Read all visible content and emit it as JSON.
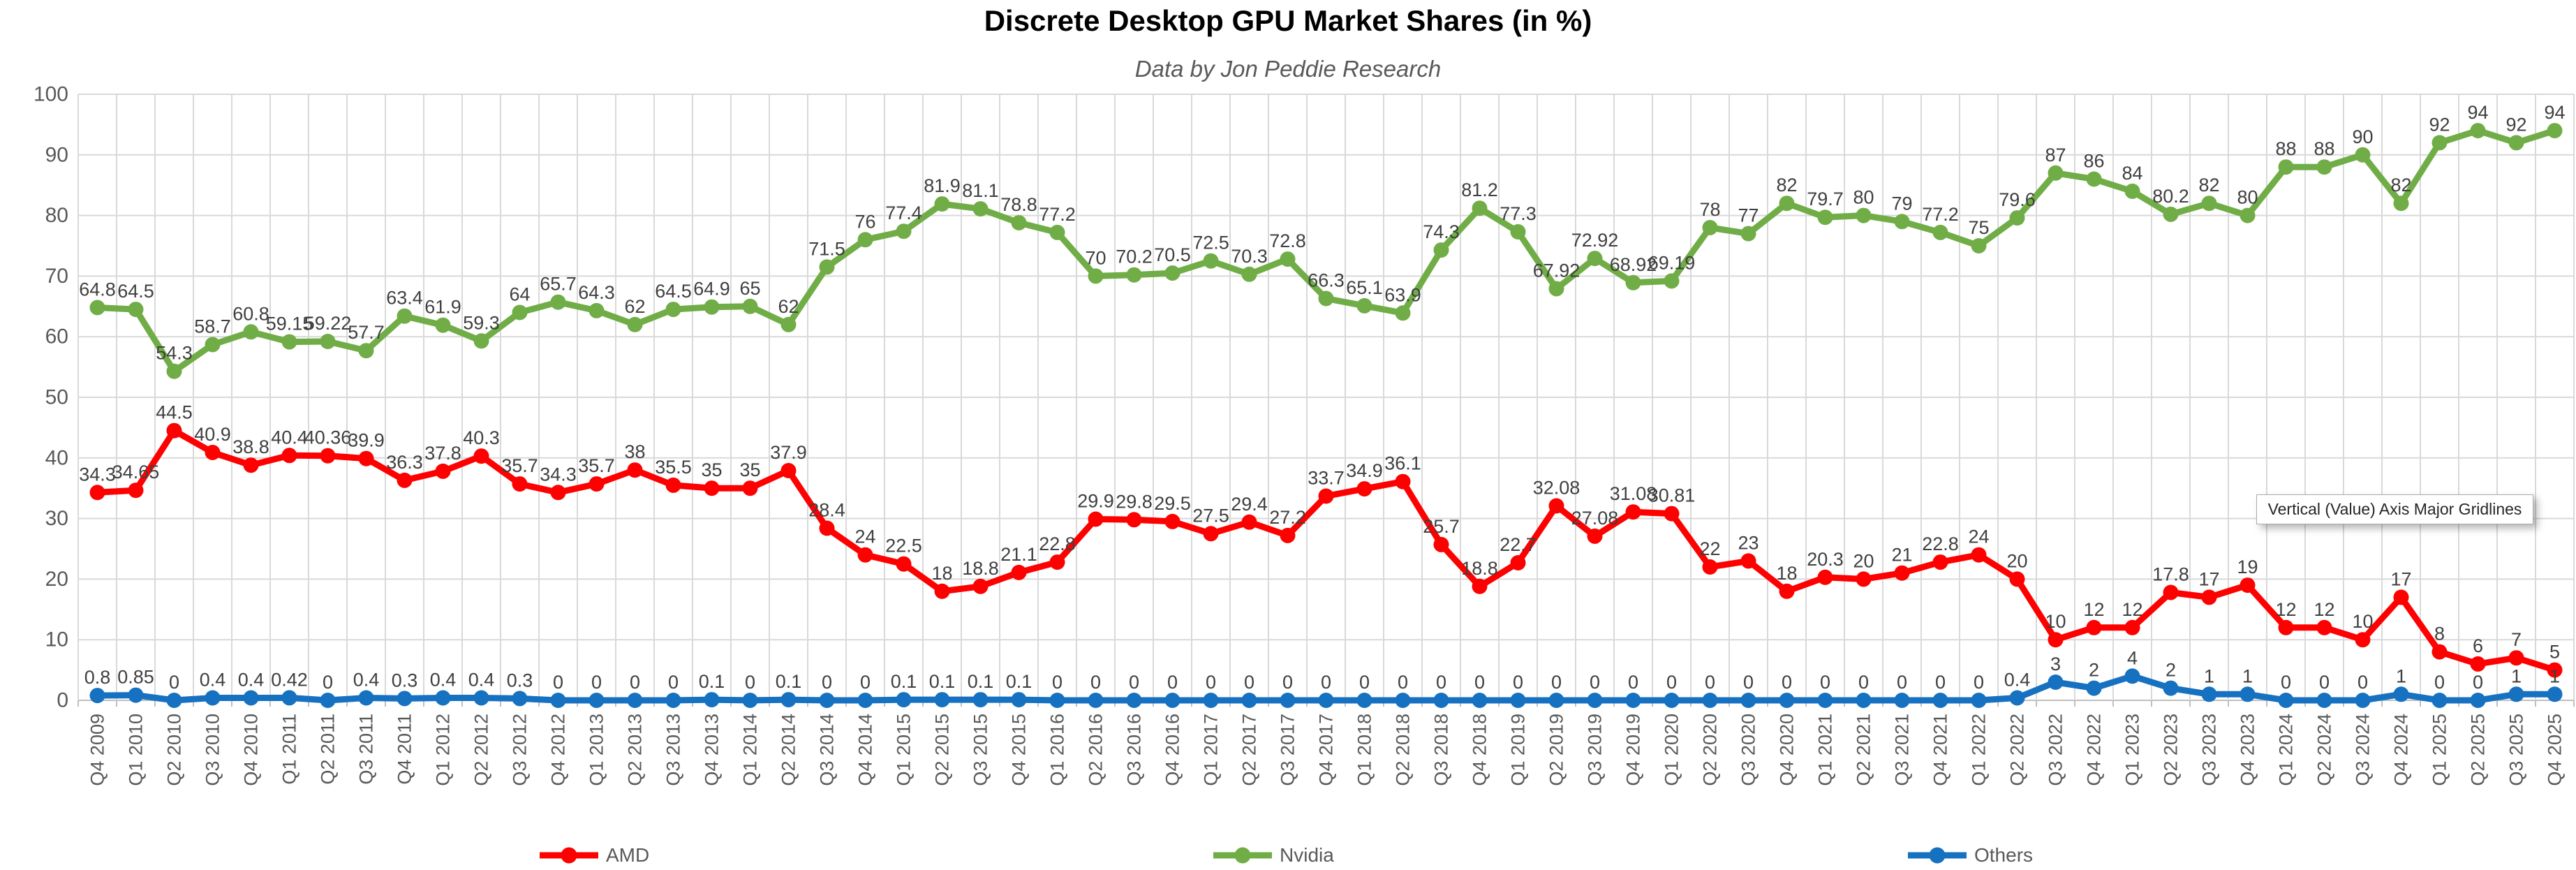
{
  "page": {
    "background": "#FFFFFF"
  },
  "colors": {
    "gridline": "#D9D9D9",
    "axis_line": "#BFBFBF",
    "axis_text": "#595959",
    "data_label": "#404040",
    "title": "#000000",
    "subtitle": "#595959",
    "amd": "#FF0000",
    "nvidia": "#70AD47",
    "others": "#1671C1"
  },
  "tooltip": {
    "text": "Vertical (Value) Axis Major Gridlines"
  },
  "chart_data": {
    "type": "line",
    "title": "Discrete Desktop GPU Market Shares (in %)",
    "subtitle": "Data by Jon Peddie Research",
    "legend_position": "bottom",
    "grid": true,
    "markers": true,
    "data_labels": true,
    "y_axis": {
      "min": 0,
      "max": 100,
      "step": 10,
      "ticks": [
        0,
        10,
        20,
        30,
        40,
        50,
        60,
        70,
        80,
        90,
        100
      ]
    },
    "x_axis": {
      "label_rotation": -90
    },
    "categories": [
      "Q4 2009",
      "Q1 2010",
      "Q2 2010",
      "Q3 2010",
      "Q4 2010",
      "Q1 2011",
      "Q2 2011",
      "Q3 2011",
      "Q4 2011",
      "Q1 2012",
      "Q2 2012",
      "Q3 2012",
      "Q4 2012",
      "Q1 2013",
      "Q2 2013",
      "Q3 2013",
      "Q4 2013",
      "Q1 2014",
      "Q2 2014",
      "Q3 2014",
      "Q4 2014",
      "Q1 2015",
      "Q2 2015",
      "Q3 2015",
      "Q4 2015",
      "Q1 2016",
      "Q2 2016",
      "Q3 2016",
      "Q4 2016",
      "Q1 2017",
      "Q2 2017",
      "Q3 2017",
      "Q4 2017",
      "Q1 2018",
      "Q2 2018",
      "Q3 2018",
      "Q4 2018",
      "Q1 2019",
      "Q2 2019",
      "Q3 2019",
      "Q4 2019",
      "Q1 2020",
      "Q2 2020",
      "Q3 2020",
      "Q4 2020",
      "Q1 2021",
      "Q2 2021",
      "Q3 2021",
      "Q4 2021",
      "Q1 2022",
      "Q2 2022",
      "Q3 2022",
      "Q4 2022",
      "Q1 2023",
      "Q2 2023",
      "Q3 2023",
      "Q4 2023",
      "Q1 2024",
      "Q2 2024",
      "Q3 2024",
      "Q4 2024",
      "Q1 2025",
      "Q2 2025",
      "Q3 2025",
      "Q4 2025"
    ],
    "series": [
      {
        "name": "AMD",
        "color": "#FF0000",
        "values": [
          34.3,
          34.65,
          44.5,
          40.9,
          38.8,
          40.4,
          40.36,
          39.9,
          36.3,
          37.8,
          40.3,
          35.7,
          34.3,
          35.7,
          38,
          35.5,
          35,
          35,
          37.9,
          28.4,
          24,
          22.5,
          18,
          18.8,
          21.1,
          22.8,
          29.9,
          29.8,
          29.5,
          27.5,
          29.4,
          27.2,
          33.7,
          34.9,
          36.1,
          25.7,
          18.8,
          22.7,
          32.08,
          27.08,
          31.08,
          30.81,
          22,
          23,
          18,
          20.3,
          20,
          21,
          22.8,
          24,
          20,
          10,
          12,
          12,
          17.8,
          17,
          19,
          12,
          12,
          10,
          17,
          8,
          6,
          7,
          5
        ]
      },
      {
        "name": "Nvidia",
        "color": "#70AD47",
        "values": [
          64.8,
          64.5,
          54.3,
          58.7,
          60.8,
          59.15,
          59.22,
          57.7,
          63.4,
          61.9,
          59.3,
          64,
          65.7,
          64.3,
          62,
          64.5,
          64.9,
          65,
          62,
          71.5,
          76,
          77.4,
          81.9,
          81.1,
          78.8,
          77.2,
          70,
          70.2,
          70.5,
          72.5,
          70.3,
          72.8,
          66.3,
          65.1,
          63.9,
          74.3,
          81.2,
          77.3,
          67.92,
          72.92,
          68.92,
          69.19,
          78,
          77,
          82,
          79.7,
          80,
          79,
          77.2,
          75,
          79.6,
          87,
          86,
          84,
          80.2,
          82,
          80,
          88,
          88,
          90,
          82,
          92,
          94,
          92,
          94
        ]
      },
      {
        "name": "Others",
        "color": "#1671C1",
        "values": [
          0.8,
          0.85,
          0,
          0.4,
          0.4,
          0.42,
          0,
          0.4,
          0.3,
          0.4,
          0.4,
          0.3,
          0,
          0,
          0,
          0,
          0.1,
          0,
          0.1,
          0,
          0,
          0.1,
          0.1,
          0.1,
          0.1,
          0,
          0,
          0,
          0,
          0,
          0,
          0,
          0,
          0,
          0,
          0,
          0,
          0,
          0,
          0,
          0,
          0,
          0,
          0,
          0,
          0,
          0,
          0,
          0,
          0,
          0.4,
          3,
          2,
          4,
          2,
          1,
          1,
          0,
          0,
          0,
          1,
          0,
          0,
          1,
          1
        ]
      }
    ]
  }
}
